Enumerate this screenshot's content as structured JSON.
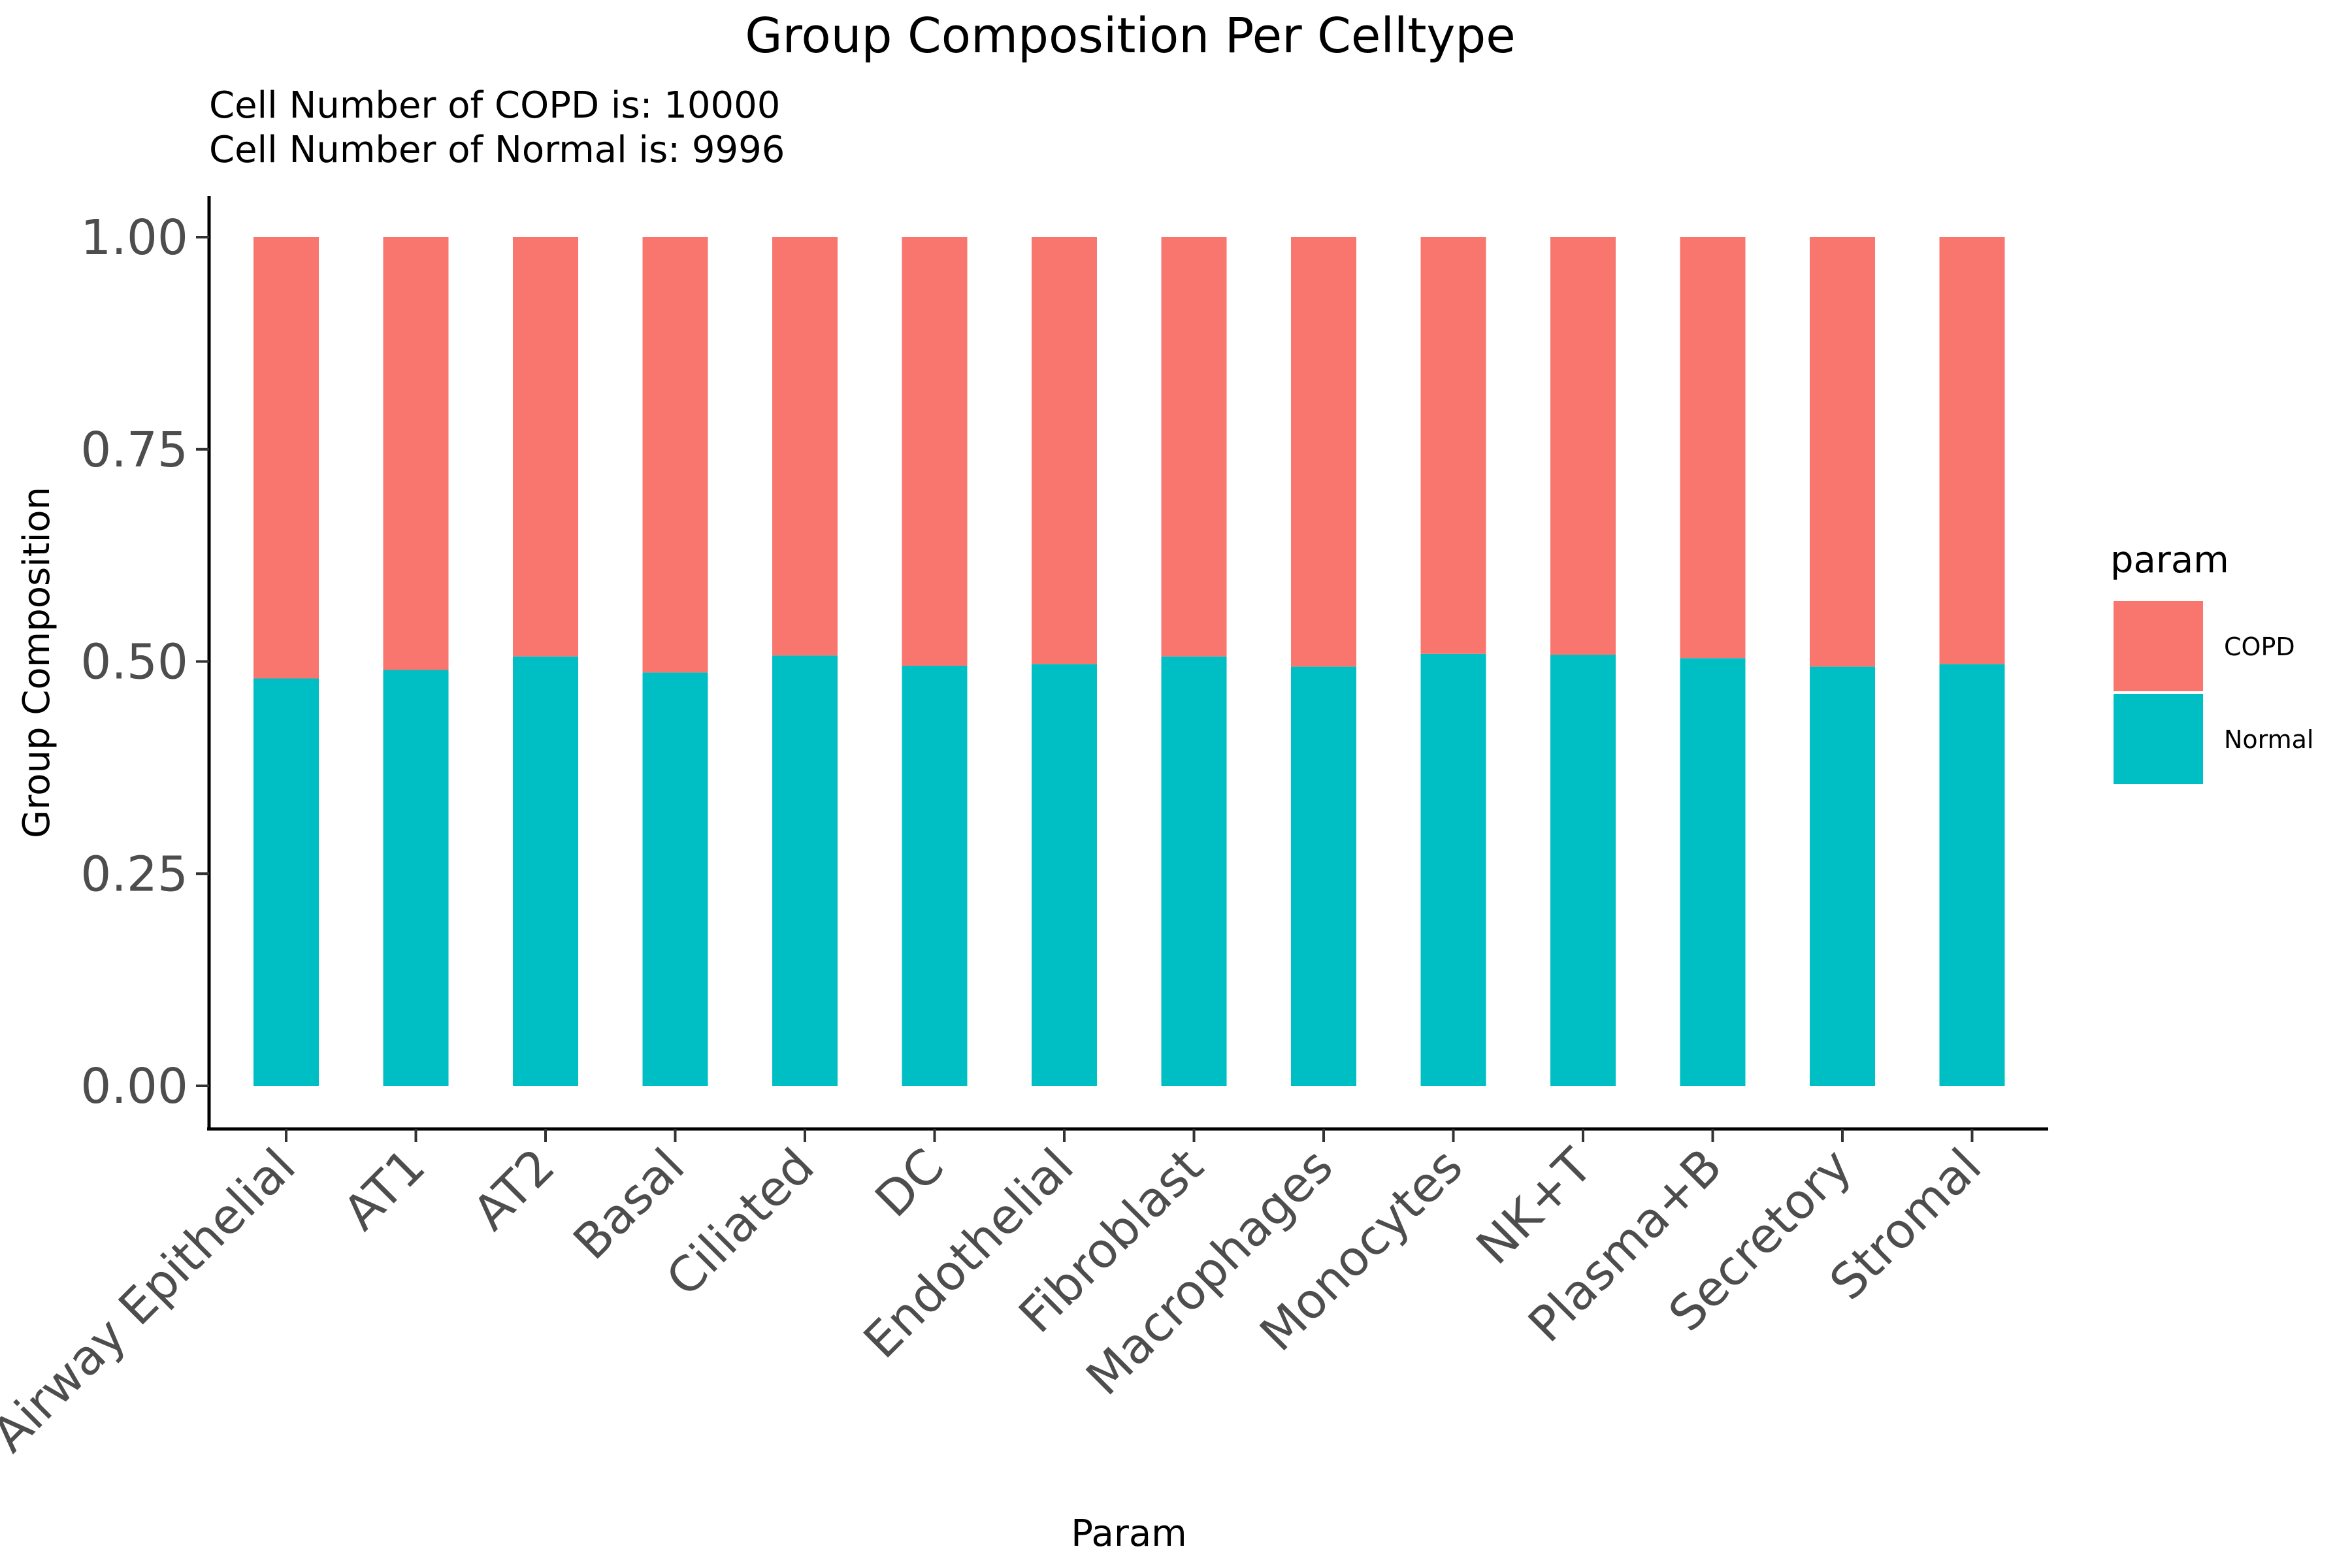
{
  "chart_data": {
    "type": "bar",
    "stacked": true,
    "title": "Group Composition Per Celltype",
    "subtitle": [
      "Cell Number of COPD is: 10000",
      "Cell Number of Normal is: 9996"
    ],
    "xlabel": "Param",
    "ylabel": "Group Composition",
    "ylim": [
      0,
      1
    ],
    "yticks": [
      "0.00",
      "0.25",
      "0.50",
      "0.75",
      "1.00"
    ],
    "grid": false,
    "legend": {
      "title": "param",
      "position": "right"
    },
    "categories": [
      "Airway Epithelial",
      "AT1",
      "AT2",
      "Basal",
      "Ciliated",
      "DC",
      "Endothelial",
      "Fibroblast",
      "Macrophages",
      "Monocytes",
      "NK+T",
      "Plasma+B",
      "Secretory",
      "Stromal"
    ],
    "series": [
      {
        "name": "COPD",
        "color": "#F8766D",
        "values": [
          0.52,
          0.51,
          0.494,
          0.513,
          0.493,
          0.505,
          0.503,
          0.494,
          0.506,
          0.491,
          0.492,
          0.496,
          0.506,
          0.503
        ]
      },
      {
        "name": "Normal",
        "color": "#00BFC4",
        "values": [
          0.48,
          0.49,
          0.506,
          0.487,
          0.507,
          0.495,
          0.497,
          0.506,
          0.494,
          0.509,
          0.508,
          0.504,
          0.494,
          0.497
        ]
      }
    ]
  }
}
